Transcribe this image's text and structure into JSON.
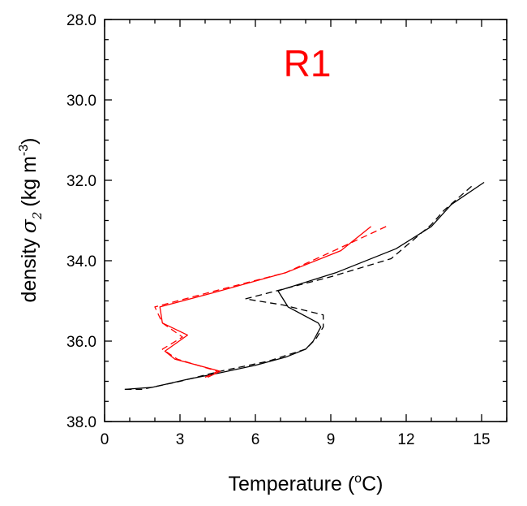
{
  "chart_data": {
    "type": "line",
    "panel_label": "R1",
    "panel_label_color": "#ff0000",
    "xlabel": "Temperature (",
    "xlabel_sup": "o",
    "xlabel_tail": "C)",
    "ylabel": "density",
    "ylabel_symbol": "σ",
    "ylabel_sub": "2",
    "ylabel_units": "(kg m",
    "ylabel_units_sup": "-3",
    "ylabel_units_tail": ")",
    "xlim": [
      0,
      16
    ],
    "ylim": [
      38.0,
      28.0
    ],
    "y_inverted": true,
    "x_ticks": [
      0,
      3,
      6,
      9,
      12,
      15
    ],
    "x_tick_labels": [
      "0",
      "3",
      "6",
      "9",
      "12",
      "15"
    ],
    "y_ticks": [
      28.0,
      30.0,
      32.0,
      34.0,
      36.0,
      38.0
    ],
    "y_tick_labels": [
      "28.0",
      "30.0",
      "32.0",
      "34.0",
      "36.0",
      "38.0"
    ],
    "series": [
      {
        "color": "#000000",
        "dashed": false,
        "points": [
          [
            15.1,
            32.05
          ],
          [
            13.8,
            32.6
          ],
          [
            13.0,
            33.15
          ],
          [
            11.6,
            33.7
          ],
          [
            9.2,
            34.3
          ],
          [
            6.9,
            34.75
          ],
          [
            7.3,
            35.15
          ],
          [
            8.5,
            35.55
          ],
          [
            8.6,
            35.65
          ],
          [
            8.3,
            36.0
          ],
          [
            8.0,
            36.2
          ],
          [
            7.2,
            36.4
          ],
          [
            6.0,
            36.6
          ],
          [
            4.5,
            36.8
          ],
          [
            3.3,
            36.95
          ],
          [
            1.9,
            37.15
          ],
          [
            0.8,
            37.2
          ]
        ]
      },
      {
        "color": "#000000",
        "dashed": true,
        "points": [
          [
            14.6,
            32.15
          ],
          [
            13.5,
            32.75
          ],
          [
            13.0,
            33.1
          ],
          [
            11.4,
            33.95
          ],
          [
            9.0,
            34.4
          ],
          [
            5.6,
            34.95
          ],
          [
            7.1,
            35.1
          ],
          [
            8.7,
            35.35
          ],
          [
            8.7,
            35.65
          ],
          [
            8.4,
            35.95
          ],
          [
            8.0,
            36.2
          ],
          [
            6.5,
            36.5
          ],
          [
            4.6,
            36.75
          ],
          [
            3.0,
            37.0
          ],
          [
            1.5,
            37.2
          ],
          [
            0.8,
            37.2
          ]
        ]
      },
      {
        "color": "#ff0000",
        "dashed": false,
        "points": [
          [
            10.6,
            33.15
          ],
          [
            9.4,
            33.75
          ],
          [
            7.2,
            34.3
          ],
          [
            4.3,
            34.8
          ],
          [
            2.2,
            35.15
          ],
          [
            2.3,
            35.55
          ],
          [
            3.3,
            35.85
          ],
          [
            2.4,
            36.25
          ],
          [
            2.8,
            36.45
          ],
          [
            4.6,
            36.75
          ],
          [
            4.1,
            36.9
          ]
        ]
      },
      {
        "color": "#ff0000",
        "dashed": true,
        "points": [
          [
            11.2,
            33.15
          ],
          [
            9.3,
            33.7
          ],
          [
            7.2,
            34.3
          ],
          [
            4.4,
            34.75
          ],
          [
            2.0,
            35.15
          ],
          [
            2.3,
            35.55
          ],
          [
            3.1,
            35.9
          ],
          [
            2.3,
            36.2
          ],
          [
            2.9,
            36.45
          ],
          [
            4.5,
            36.75
          ],
          [
            4.0,
            36.9
          ]
        ]
      }
    ]
  }
}
